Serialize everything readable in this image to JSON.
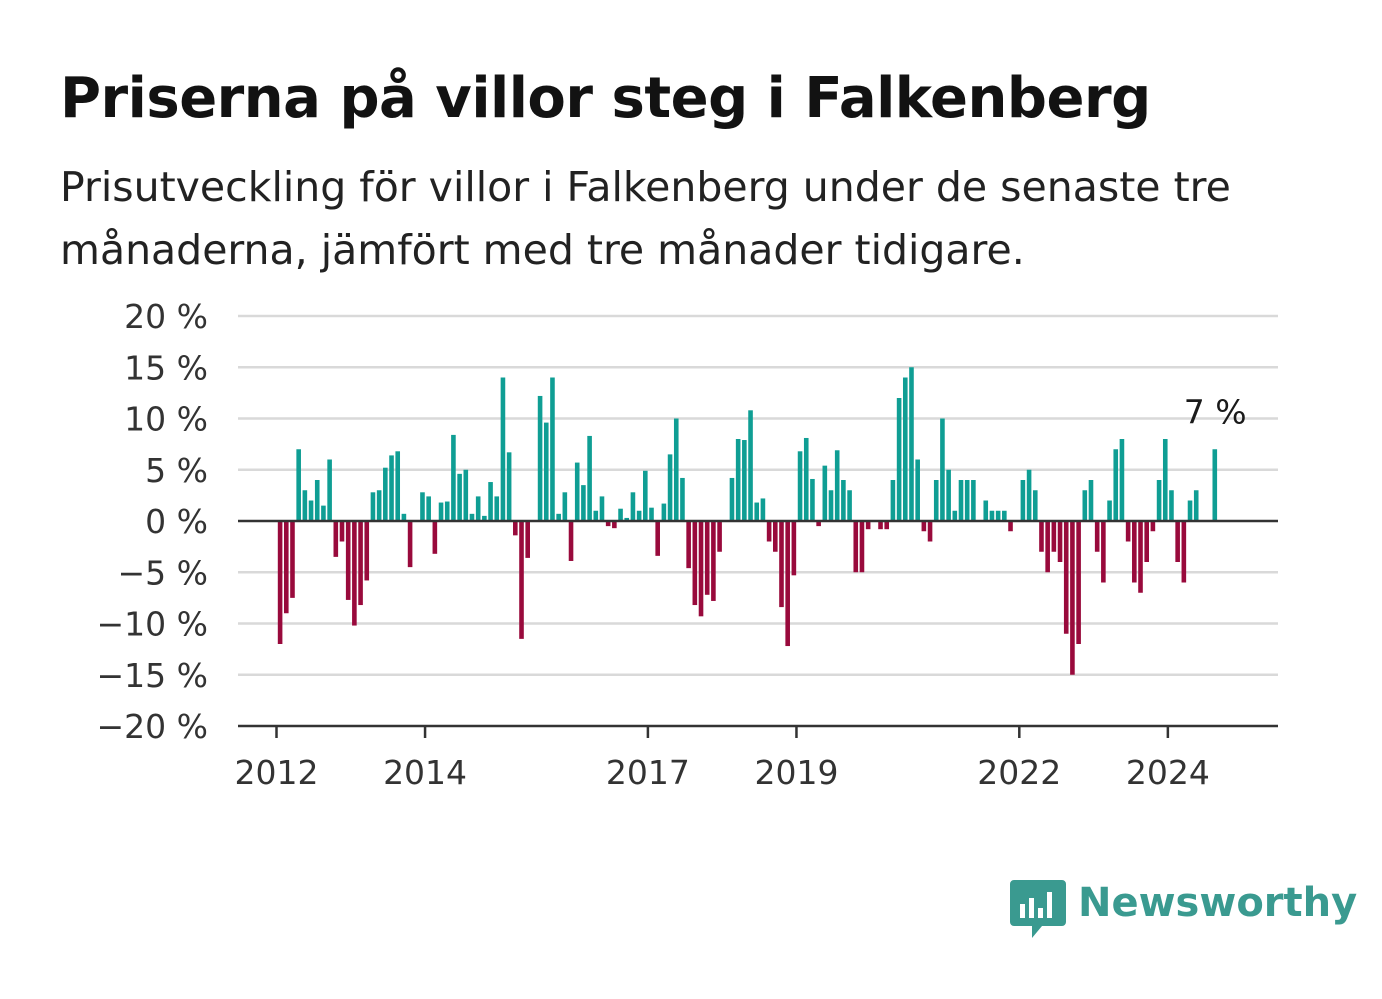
{
  "title": "Priserna på villor steg i Falkenberg",
  "subtitle": "Prisutveckling för villor i Falkenberg under de senaste tre månaderna, jämfört med tre månader tidigare.",
  "brand": {
    "name": "Newsworthy"
  },
  "colors": {
    "positive": "#0f9e94",
    "negative": "#990a3c",
    "grid": "#d9d9d9",
    "axis": "#333333",
    "brand": "#3a9a90"
  },
  "chart_data": {
    "type": "bar",
    "ylim": [
      -20,
      20
    ],
    "yticks": [
      20,
      15,
      10,
      5,
      0,
      -5,
      -10,
      -15,
      -20
    ],
    "ytick_labels": [
      "20 %",
      "15 %",
      "10 %",
      "5 %",
      "0 %",
      "−5 %",
      "−10 %",
      "−15 %",
      "−20 %"
    ],
    "xticks": [
      {
        "label": "2012",
        "month_index": 0
      },
      {
        "label": "2014",
        "month_index": 24
      },
      {
        "label": "2017",
        "month_index": 60
      },
      {
        "label": "2019",
        "month_index": 84
      },
      {
        "label": "2022",
        "month_index": 120
      },
      {
        "label": "2024",
        "month_index": 144
      }
    ],
    "start": "2012-01",
    "frequency": "monthly",
    "values": [
      -12,
      -9,
      -7.5,
      7,
      3,
      2,
      4,
      1.5,
      6,
      -3.5,
      -2,
      -7.7,
      -10.2,
      -8.2,
      -5.8,
      2.8,
      3,
      5.2,
      6.4,
      6.8,
      0.7,
      -4.5,
      0,
      2.8,
      2.4,
      -3.2,
      1.8,
      1.9,
      8.4,
      4.6,
      5,
      0.7,
      2.4,
      0.5,
      3.8,
      2.4,
      14,
      6.7,
      -1.4,
      -11.5,
      -3.6,
      0,
      12.2,
      9.6,
      14,
      0.7,
      2.8,
      -3.9,
      5.7,
      3.5,
      8.3,
      1,
      2.4,
      -0.5,
      -0.7,
      1.2,
      0.3,
      2.8,
      1,
      4.9,
      1.3,
      -3.4,
      1.7,
      6.5,
      10,
      4.2,
      -4.6,
      -8.2,
      -9.3,
      -7.2,
      -7.8,
      -3,
      0,
      4.2,
      8,
      7.9,
      10.8,
      1.8,
      2.2,
      -2,
      -3,
      -8.4,
      -12.2,
      -5.3,
      6.8,
      8.1,
      4.1,
      -0.5,
      5.4,
      3,
      6.9,
      4,
      3,
      -5,
      -5,
      -0.8,
      0,
      -0.8,
      -0.8,
      4,
      12,
      14,
      15,
      6,
      -1,
      -2,
      4,
      10,
      5,
      1,
      4,
      4,
      4,
      0,
      2,
      1,
      1,
      1,
      -1,
      0,
      4,
      5,
      3,
      -3,
      -5,
      -3,
      -4,
      -11,
      -15,
      -12,
      3,
      4,
      -3,
      -6,
      2,
      7,
      8,
      -2,
      -6,
      -7,
      -4,
      -1,
      4,
      8,
      3,
      -4,
      -6,
      2,
      3,
      0,
      0,
      7
    ],
    "annotation": {
      "text": "7 %"
    }
  }
}
